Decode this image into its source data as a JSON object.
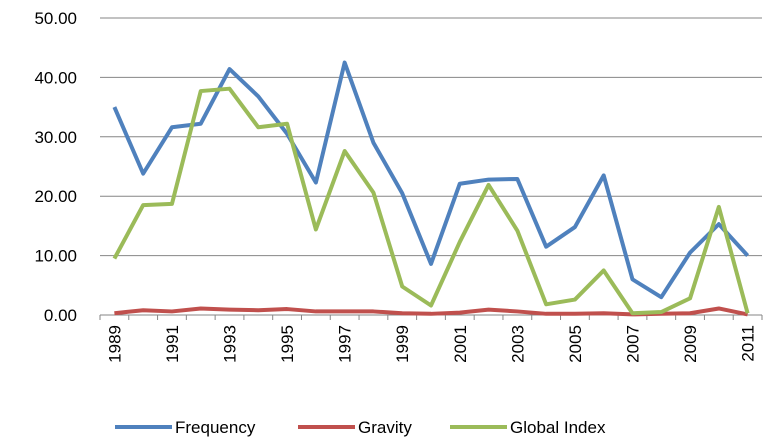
{
  "chart_data": {
    "type": "line",
    "categories": [
      "1989",
      null,
      "1991",
      null,
      "1993",
      null,
      "1995",
      null,
      "1997",
      null,
      "1999",
      null,
      "2001",
      null,
      "2003",
      null,
      "2005",
      null,
      "2007",
      null,
      "2009",
      null,
      "2011"
    ],
    "series": [
      {
        "name": "Frequency",
        "color": "#4f81bd",
        "values": [
          35.0,
          23.8,
          31.6,
          32.2,
          41.4,
          36.8,
          30.5,
          22.3,
          42.5,
          29.0,
          20.5,
          8.6,
          22.1,
          22.8,
          22.9,
          11.5,
          14.8,
          23.5,
          6.0,
          3.0,
          10.5,
          15.3,
          10.0
        ]
      },
      {
        "name": "Gravity",
        "color": "#c0504d",
        "values": [
          0.3,
          0.8,
          0.6,
          1.1,
          0.9,
          0.8,
          1.0,
          0.6,
          0.6,
          0.6,
          0.3,
          0.2,
          0.4,
          0.9,
          0.6,
          0.2,
          0.2,
          0.3,
          0.1,
          0.2,
          0.3,
          1.1,
          0.1
        ]
      },
      {
        "name": "Global Index",
        "color": "#9bbb59",
        "values": [
          9.5,
          18.5,
          18.7,
          37.7,
          38.1,
          31.6,
          32.2,
          14.4,
          27.6,
          20.6,
          4.8,
          1.6,
          12.3,
          21.9,
          14.2,
          1.8,
          2.6,
          7.5,
          0.3,
          0.5,
          2.8,
          18.2,
          0.3
        ]
      }
    ],
    "ylim": [
      0,
      50
    ],
    "yticks": [
      {
        "value": 0,
        "label": "0.00"
      },
      {
        "value": 10,
        "label": "10.00"
      },
      {
        "value": 20,
        "label": "20.00"
      },
      {
        "value": 30,
        "label": "30.00"
      },
      {
        "value": 40,
        "label": "40.00"
      },
      {
        "value": 50,
        "label": "50.00"
      }
    ],
    "grid": true,
    "legend": "bottom"
  }
}
